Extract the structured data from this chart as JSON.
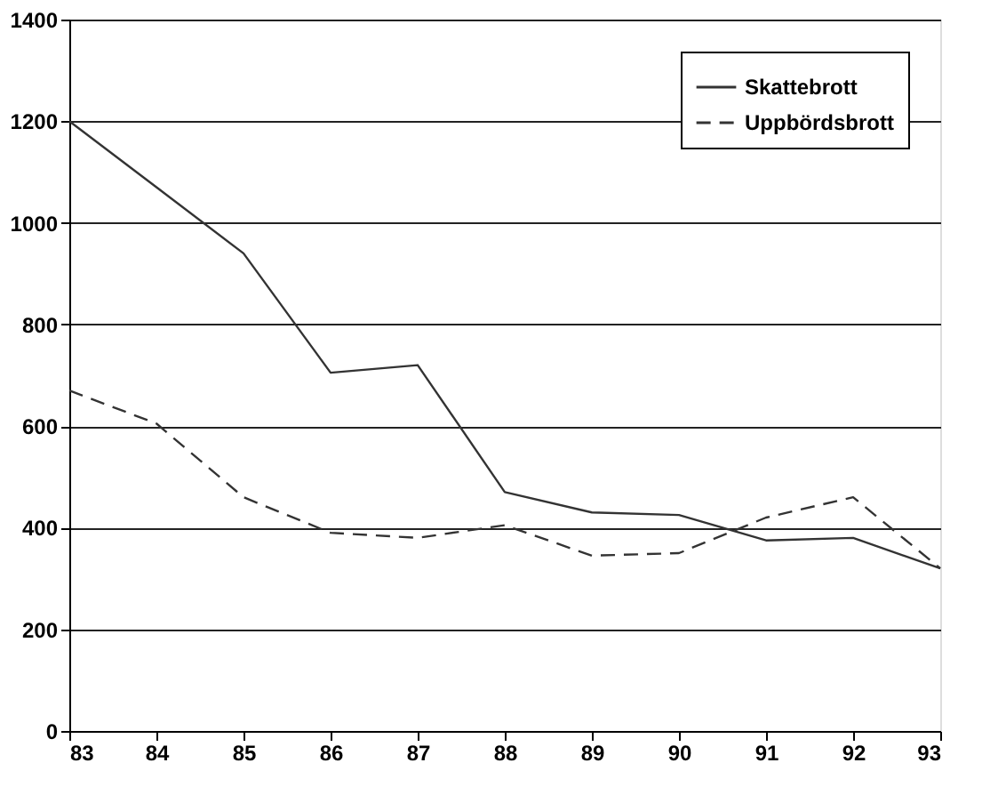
{
  "chart_data": {
    "type": "line",
    "x": [
      83,
      84,
      85,
      86,
      87,
      88,
      89,
      90,
      91,
      92,
      93
    ],
    "xlim": [
      83,
      93
    ],
    "xticks": [
      83,
      84,
      85,
      86,
      87,
      88,
      89,
      90,
      91,
      92,
      93
    ],
    "ylim": [
      0,
      1400
    ],
    "yticks": [
      0,
      200,
      400,
      600,
      800,
      1000,
      1200,
      1400
    ],
    "grid": "y",
    "legend": "top right",
    "series": [
      {
        "name": "Skattebrott",
        "color": "#333333",
        "line_style": "solid",
        "values": [
          1200,
          1070,
          940,
          705,
          720,
          470,
          430,
          425,
          375,
          380,
          320
        ]
      },
      {
        "name": "Uppbördsbrott",
        "color": "#333333",
        "line_style": "dashed",
        "values": [
          670,
          605,
          460,
          390,
          380,
          405,
          345,
          350,
          420,
          460,
          320
        ]
      }
    ]
  }
}
